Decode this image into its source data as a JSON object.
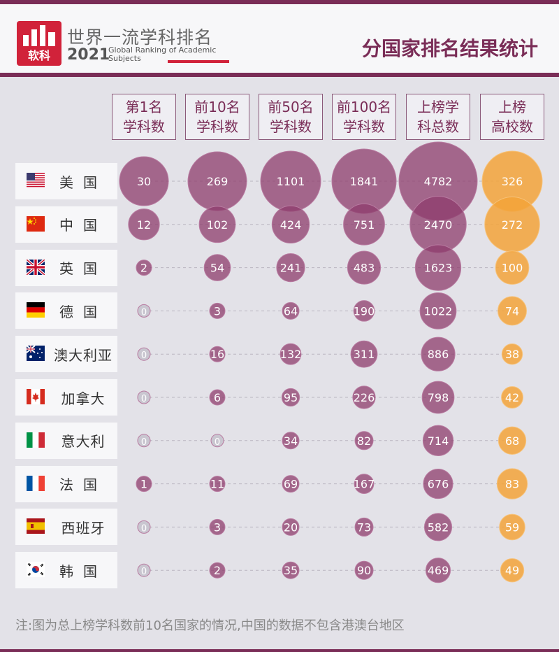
{
  "header": {
    "logo_caption": "软科",
    "brand_cn": "世界一流学科排名",
    "brand_year": "2021",
    "brand_en": "Global Ranking of Academic Subjects",
    "title": "分国家排名结果统计"
  },
  "columns": [
    {
      "line1": "第1名",
      "line2": "学科数"
    },
    {
      "line1": "前10名",
      "line2": "学科数"
    },
    {
      "line1": "前50名",
      "line2": "学科数"
    },
    {
      "line1": "前100名",
      "line2": "学科数"
    },
    {
      "line1": "上榜学",
      "line2": "科总数"
    },
    {
      "line1": "上榜",
      "line2": "高校数"
    }
  ],
  "rows": [
    {
      "country": "美国",
      "flag": "us-flag-icon"
    },
    {
      "country": "中国",
      "flag": "cn-flag-icon"
    },
    {
      "country": "英国",
      "flag": "uk-flag-icon"
    },
    {
      "country": "德国",
      "flag": "de-flag-icon"
    },
    {
      "country": "澳大利亚",
      "flag": "au-flag-icon"
    },
    {
      "country": "加拿大",
      "flag": "ca-flag-icon"
    },
    {
      "country": "意大利",
      "flag": "it-flag-icon"
    },
    {
      "country": "法国",
      "flag": "fr-flag-icon"
    },
    {
      "country": "西班牙",
      "flag": "es-flag-icon"
    },
    {
      "country": "韩国",
      "flag": "kr-flag-icon"
    }
  ],
  "note": "注:图为总上榜学科数前10名国家的情况,中国的数据不包含港澳台地区",
  "colors": {
    "primary": "#7a2d57",
    "bubble": "#8e3c6c",
    "zero_bubble": "#c9c6d0",
    "orange": "#f3a33a"
  },
  "chart_data": {
    "type": "bubble-table",
    "categories": [
      "美国",
      "中国",
      "英国",
      "德国",
      "澳大利亚",
      "加拿大",
      "意大利",
      "法国",
      "西班牙",
      "韩国"
    ],
    "series": [
      {
        "name": "第1名学科数",
        "values": [
          30,
          12,
          2,
          0,
          0,
          0,
          0,
          1,
          0,
          0
        ]
      },
      {
        "name": "前10名学科数",
        "values": [
          269,
          102,
          54,
          3,
          16,
          6,
          0,
          11,
          3,
          2
        ]
      },
      {
        "name": "前50名学科数",
        "values": [
          1101,
          424,
          241,
          64,
          132,
          95,
          34,
          69,
          20,
          35
        ]
      },
      {
        "name": "前100名学科数",
        "values": [
          1841,
          751,
          483,
          190,
          311,
          226,
          82,
          167,
          73,
          90
        ]
      },
      {
        "name": "上榜学科总数",
        "values": [
          4782,
          2470,
          1623,
          1022,
          886,
          798,
          714,
          676,
          582,
          469
        ]
      },
      {
        "name": "上榜高校数",
        "values": [
          326,
          272,
          100,
          74,
          38,
          42,
          68,
          83,
          59,
          49
        ]
      }
    ]
  }
}
